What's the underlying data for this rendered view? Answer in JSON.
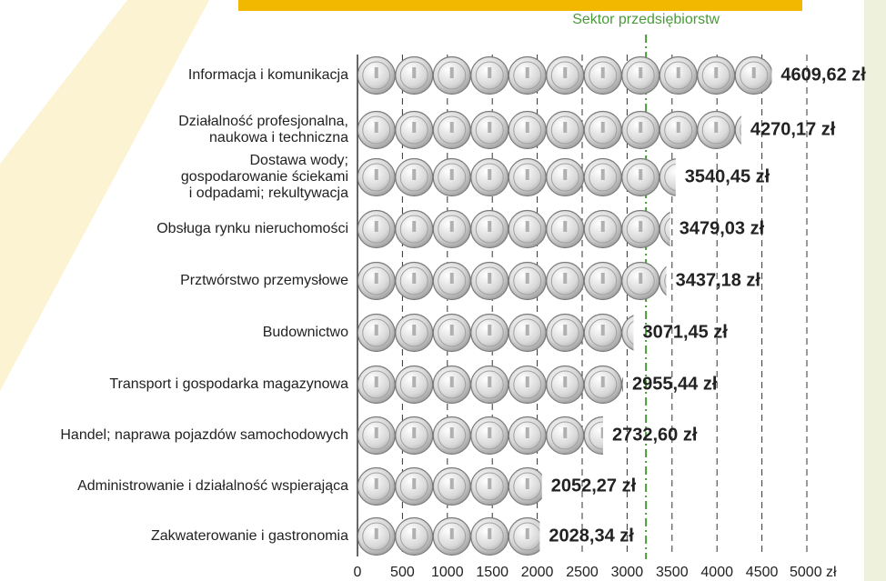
{
  "chart_data": {
    "type": "pictogram-bar",
    "orientation": "horizontal",
    "categories": [
      "Informacja i komunikacja",
      "Działalność profesjonalna,\nnaukowa i techniczna",
      "Dostawa wody;\ngospodarowanie ściekami\ni odpadami; rekultywacja",
      "Obsługa rynku nieruchomości",
      "Prztwórstwo przemysłowe",
      "Budownictwo",
      "Transport i gospodarka magazynowa",
      "Handel; naprawa pojazdów samochodowych",
      "Administrowanie i działalność wspierająca",
      "Zakwaterowanie i gastronomia"
    ],
    "values": [
      4609.62,
      4270.17,
      3540.45,
      3479.03,
      3437.18,
      3071.45,
      2955.44,
      2732.6,
      2052.27,
      2028.34
    ],
    "value_labels": [
      "4609,62 zł",
      "4270,17 zł",
      "3540,45 zł",
      "3479,03 zł",
      "3437,18 zł",
      "3071,45 zł",
      "2955,44 zł",
      "2732,60 zł",
      "2052,27 zł",
      "2028,34 zł"
    ],
    "xlim": [
      0,
      5000
    ],
    "xticks": [
      0,
      500,
      1000,
      1500,
      2000,
      2500,
      3000,
      3500,
      4000,
      4500,
      {
        "value": 5000,
        "label": "5000 zł"
      }
    ],
    "grid": true,
    "reference_line": {
      "value": 3210,
      "label": "Sektor przedsiębiorstw",
      "color": "#4a9a3a"
    }
  }
}
